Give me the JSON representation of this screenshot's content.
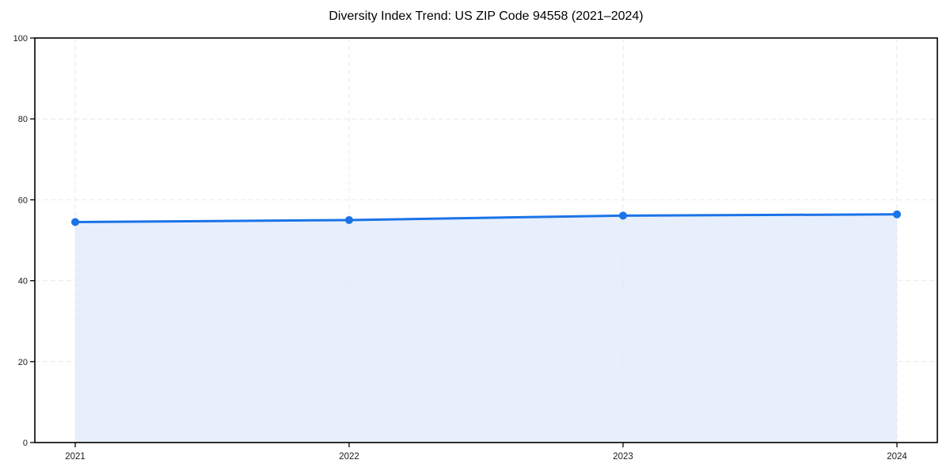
{
  "chart_data": {
    "type": "area",
    "title": "Diversity Index Trend: US ZIP Code 94558 (2021–2024)",
    "categories": [
      "2021",
      "2022",
      "2023",
      "2024"
    ],
    "series": [
      {
        "name": "Diversity Index",
        "values": [
          54.5,
          55.0,
          56.1,
          56.4
        ]
      }
    ],
    "xlabel": "",
    "ylabel": "",
    "ylim": [
      0,
      100
    ],
    "yticks": [
      0,
      20,
      40,
      60,
      80,
      100
    ],
    "grid": "dashed, both axes",
    "legend": "none",
    "colors": {
      "line": "#1a73e8",
      "marker": "#1a73e8",
      "fill": "#e7effc",
      "grid": "#e9e9e9",
      "spine": "#000000",
      "tick_text": "#1a1a1a",
      "background": "#ffffff"
    }
  }
}
